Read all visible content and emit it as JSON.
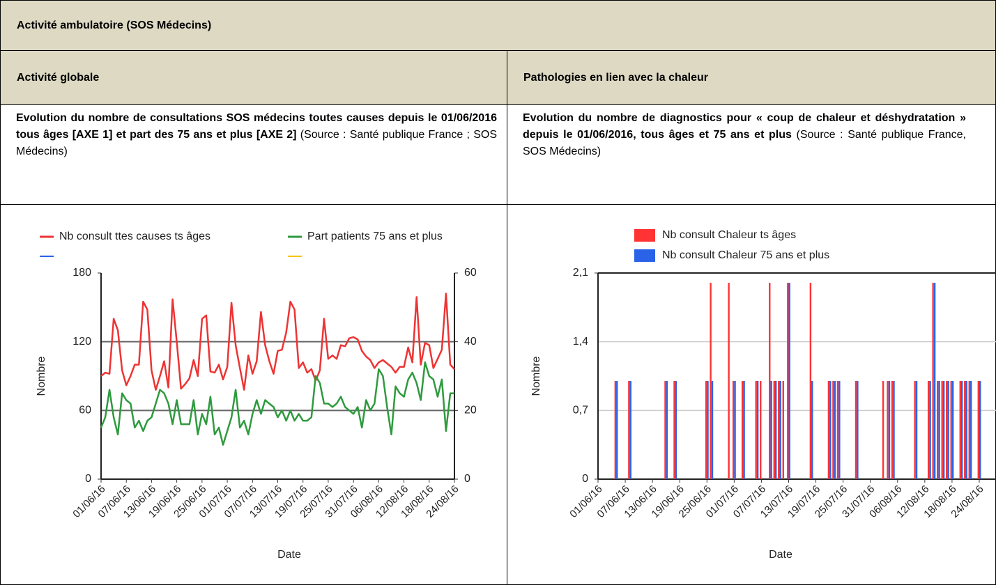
{
  "header": {
    "title": "Activité ambulatoire (SOS Médecins)"
  },
  "sections": [
    {
      "title": "Activité globale",
      "description": [
        {
          "text": "Evolution du nombre de consultations SOS médecins toutes causes depuis le 01/06/2016 tous âges [AXE 1] et part des 75 ans et plus [AXE 2]",
          "bold": true
        },
        {
          "text": "(Source : Santé publique France ; SOS Médecins)",
          "bold": false
        }
      ]
    },
    {
      "title": "Pathologies en lien avec la chaleur",
      "description": [
        {
          "text": "Evolution du nombre de diagnostics pour « coup de chaleur et déshydratation » depuis le 01/06/2016, tous âges et 75 ans et plus",
          "bold": true
        },
        {
          "text": "(Source : Santé publique France, SOS Médecins)",
          "bold": false
        }
      ]
    }
  ],
  "chart_data": [
    {
      "type": "line",
      "xlabel": "Date",
      "ylabel": "Nombre",
      "categories": [
        "01/06/16",
        null,
        null,
        null,
        null,
        null,
        "07/06/16",
        null,
        null,
        null,
        null,
        null,
        "13/06/16",
        null,
        null,
        null,
        null,
        null,
        "19/06/16",
        null,
        null,
        null,
        null,
        null,
        "25/06/16",
        null,
        null,
        null,
        null,
        null,
        "01/07/16",
        null,
        null,
        null,
        null,
        null,
        "07/07/16",
        null,
        null,
        null,
        null,
        null,
        "13/07/16",
        null,
        null,
        null,
        null,
        null,
        "19/07/16",
        null,
        null,
        null,
        null,
        null,
        "25/07/16",
        null,
        null,
        null,
        null,
        null,
        "31/07/16",
        null,
        null,
        null,
        null,
        null,
        "06/08/16",
        null,
        null,
        null,
        null,
        null,
        "12/08/16",
        null,
        null,
        null,
        null,
        null,
        "18/08/16",
        null,
        null,
        null,
        null,
        null,
        "24/08/16"
      ],
      "series": [
        {
          "name": "Nb consult ttes causes ts âges",
          "color": "#ee3333",
          "values": [
            90,
            93,
            92,
            140,
            130,
            95,
            82,
            90,
            100,
            100,
            155,
            148,
            95,
            78,
            90,
            103,
            80,
            157,
            120,
            79,
            83,
            88,
            104,
            90,
            140,
            143,
            94,
            93,
            100,
            87,
            98,
            154,
            117,
            97,
            78,
            108,
            92,
            103,
            146,
            117,
            103,
            92,
            112,
            113,
            128,
            155,
            148,
            97,
            102,
            93,
            96,
            86,
            95,
            140,
            105,
            108,
            105,
            117,
            116,
            123,
            124,
            122,
            112,
            107,
            104,
            97,
            102,
            104,
            101,
            98,
            93,
            98,
            98,
            115,
            102,
            159,
            100,
            119,
            117,
            97,
            105,
            113,
            162,
            100,
            96
          ]
        },
        {
          "name": "Part patients 75 ans et plus",
          "color": "#2e9a3e",
          "axis": "y2",
          "values": [
            15,
            18,
            26,
            18,
            13,
            25,
            23,
            22,
            15,
            17,
            14,
            17,
            18,
            22,
            26,
            25,
            22,
            16,
            23,
            16,
            16,
            16,
            23,
            13,
            19,
            16,
            24,
            13,
            15,
            10,
            14,
            18,
            26,
            15,
            17,
            13,
            19,
            23,
            19,
            23,
            22,
            21,
            18,
            20,
            17,
            20,
            17,
            19,
            17,
            17,
            18,
            30,
            28,
            22,
            22,
            21,
            22,
            24,
            21,
            20,
            19,
            21,
            15,
            23,
            20,
            22,
            32,
            30,
            21,
            13,
            27,
            25,
            24,
            29,
            31,
            28,
            23,
            34,
            30,
            29,
            24,
            29,
            14,
            25,
            25
          ]
        }
      ],
      "ylim": [
        0,
        180
      ],
      "yticks": [
        0,
        60,
        120,
        180
      ],
      "y2lim": [
        0,
        60
      ],
      "y2ticks": [
        0,
        20,
        40,
        60
      ],
      "grid": true
    },
    {
      "type": "bar",
      "xlabel": "Date",
      "ylabel": "Nombre",
      "categories": [
        "01/06/16",
        null,
        null,
        null,
        null,
        null,
        "07/06/16",
        null,
        null,
        null,
        null,
        null,
        "13/06/16",
        null,
        null,
        null,
        null,
        null,
        "19/06/16",
        null,
        null,
        null,
        null,
        null,
        "25/06/16",
        null,
        null,
        null,
        null,
        null,
        "01/07/16",
        null,
        null,
        null,
        null,
        null,
        "07/07/16",
        null,
        null,
        null,
        null,
        null,
        "13/07/16",
        null,
        null,
        null,
        null,
        null,
        "19/07/16",
        null,
        null,
        null,
        null,
        null,
        "25/07/16",
        null,
        null,
        null,
        null,
        null,
        "31/07/16",
        null,
        null,
        null,
        null,
        null,
        "06/08/16",
        null,
        null,
        null,
        null,
        null,
        "12/08/16",
        null,
        null,
        null,
        null,
        null,
        "18/08/16",
        null,
        null,
        null,
        null,
        null,
        "24/08/16"
      ],
      "series": [
        {
          "name": "Nb consult Chaleur ts âges",
          "color": "#ff3333",
          "values": [
            0,
            0,
            0,
            0,
            1,
            0,
            0,
            1,
            0,
            0,
            0,
            0,
            0,
            0,
            0,
            1,
            0,
            1,
            0,
            0,
            0,
            0,
            0,
            0,
            1,
            2,
            0,
            0,
            0,
            2,
            1,
            0,
            1,
            0,
            0,
            1,
            1,
            0,
            2,
            1,
            1,
            1,
            2,
            0,
            0,
            0,
            0,
            2,
            0,
            0,
            0,
            1,
            1,
            1,
            0,
            0,
            0,
            1,
            0,
            0,
            0,
            0,
            0,
            1,
            1,
            1,
            0,
            0,
            0,
            0,
            1,
            0,
            0,
            1,
            2,
            1,
            1,
            1,
            1,
            0,
            1,
            1,
            1,
            0,
            1
          ]
        },
        {
          "name": "Nb consult Chaleur 75 ans et plus",
          "color": "#2a62e8",
          "values": [
            0,
            0,
            0,
            0,
            1,
            0,
            0,
            1,
            0,
            0,
            0,
            0,
            0,
            0,
            0,
            1,
            0,
            1,
            0,
            0,
            0,
            0,
            0,
            0,
            1,
            1,
            0,
            0,
            0,
            0,
            1,
            0,
            1,
            0,
            0,
            1,
            0,
            0,
            1,
            1,
            1,
            0,
            2,
            0,
            0,
            0,
            0,
            1,
            0,
            0,
            0,
            1,
            1,
            1,
            0,
            0,
            0,
            1,
            0,
            0,
            0,
            0,
            0,
            0,
            1,
            1,
            0,
            0,
            0,
            0,
            1,
            0,
            0,
            1,
            2,
            1,
            1,
            1,
            1,
            0,
            1,
            1,
            1,
            0,
            1
          ]
        }
      ],
      "ylim": [
        0,
        2.1
      ],
      "yticks": [
        0,
        {
          "value": 0.7,
          "label": "0,7"
        },
        {
          "value": 1.4,
          "label": "1,4"
        },
        {
          "value": 2.1,
          "label": "2,1"
        }
      ],
      "grid": true
    }
  ]
}
